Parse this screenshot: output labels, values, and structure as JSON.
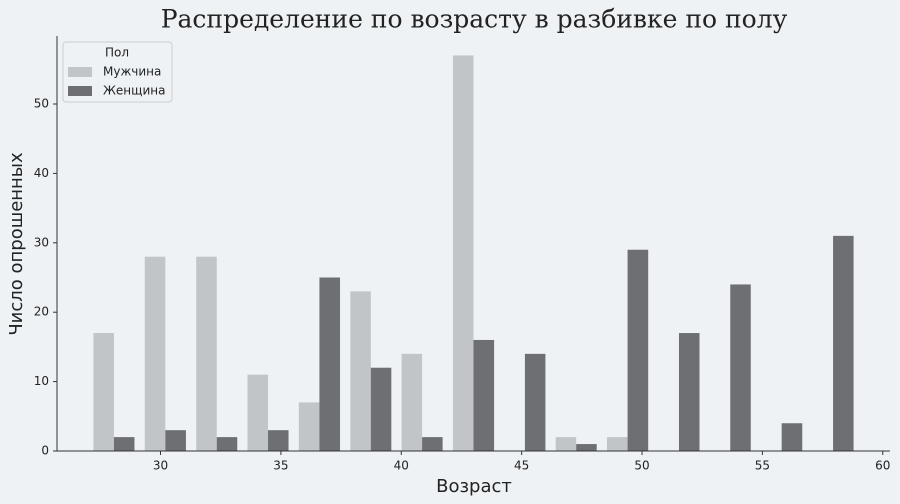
{
  "chart_data": {
    "type": "histogram",
    "title": "Распределение по возрасту в разбивке по полу",
    "xlabel": "Возраст",
    "ylabel": "Число опрошенных",
    "legend_title": "Пол",
    "legend": "upper left",
    "bins": [
      27,
      29.13,
      31.27,
      33.4,
      35.53,
      37.67,
      39.8,
      41.93,
      44.07,
      46.2,
      48.33,
      50.47,
      52.6,
      54.73,
      56.87,
      59
    ],
    "series": [
      {
        "name": "Мужчина",
        "color": "#c2c5c8",
        "values": [
          17,
          28,
          28,
          11,
          7,
          23,
          14,
          57,
          0,
          2,
          2,
          0,
          0,
          0,
          0
        ]
      },
      {
        "name": "Женщина",
        "color": "#6e6f73",
        "values": [
          2,
          3,
          2,
          3,
          25,
          12,
          2,
          16,
          14,
          1,
          29,
          17,
          24,
          4,
          31
        ]
      }
    ],
    "xlim": [
      25.7,
      60.3
    ],
    "xticks": [
      30,
      35,
      40,
      45,
      50,
      55,
      60
    ],
    "ylim": [
      0,
      59.8
    ],
    "yticks": [
      0,
      10,
      20,
      30,
      40,
      50
    ]
  }
}
